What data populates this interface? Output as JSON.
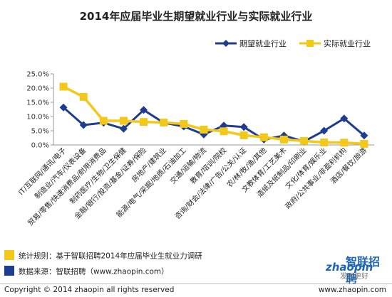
{
  "chart_data": {
    "type": "line",
    "title": "2014年应届毕业生期望就业行业与实际就业行业",
    "categories": [
      "IT/互联网/通讯/电子",
      "制造业/汽车/仪表设备",
      "贸易/零售/快速消费品/耐用消费品",
      "制药医疗/生物/卫生保健",
      "金融/银行/投资/基金/证券/保险",
      "房地产/建筑业",
      "能源/电气/采掘/地质/石油加工",
      "交通/运输/物流",
      "教育/培训/院校",
      "咨询/财会/法律/广告/公关/认证",
      "农/林/牧/渔/其他",
      "文教体育/工艺美术",
      "造纸及纸制品/印刷业",
      "文化/体育/娱乐业",
      "政府/公共事业/非盈利机构",
      "酒店/餐饮/旅游"
    ],
    "series": [
      {
        "name": "期望就业行业",
        "color": "#1f3d8f",
        "marker": "diamond",
        "values": [
          13.2,
          7.0,
          7.8,
          5.7,
          12.3,
          7.8,
          6.5,
          3.7,
          6.8,
          6.3,
          1.9,
          3.3,
          1.2,
          5.0,
          9.3,
          3.3
        ]
      },
      {
        "name": "实际就业行业",
        "color": "#f2c81b",
        "marker": "square",
        "values": [
          20.5,
          16.9,
          8.5,
          8.5,
          8.1,
          7.9,
          7.4,
          5.4,
          4.8,
          3.4,
          2.7,
          1.9,
          1.4,
          0.9,
          0.8,
          0.4
        ]
      }
    ],
    "yticks": [
      "0.0%",
      "5.0%",
      "10.0%",
      "15.0%",
      "20.0%",
      "25.0%"
    ],
    "ylim": [
      0,
      25
    ],
    "grid": false,
    "legend": "top-right"
  },
  "notes": [
    {
      "label": "统计规则：基于智联招聘2014年应届毕业生就业力调研",
      "color": "#f2c81b"
    },
    {
      "label": "数据来源：智联招聘（www.zhaopin.com）",
      "color": "#1f3d8f"
    }
  ],
  "logo": {
    "cn": "智联招聘",
    "en": "zhaopin",
    "slogan": "发现更好"
  },
  "footer": {
    "copyright": "Copyright  ©  2014 zhaopin all rights reserved",
    "site": "www.zhaopin.com"
  }
}
